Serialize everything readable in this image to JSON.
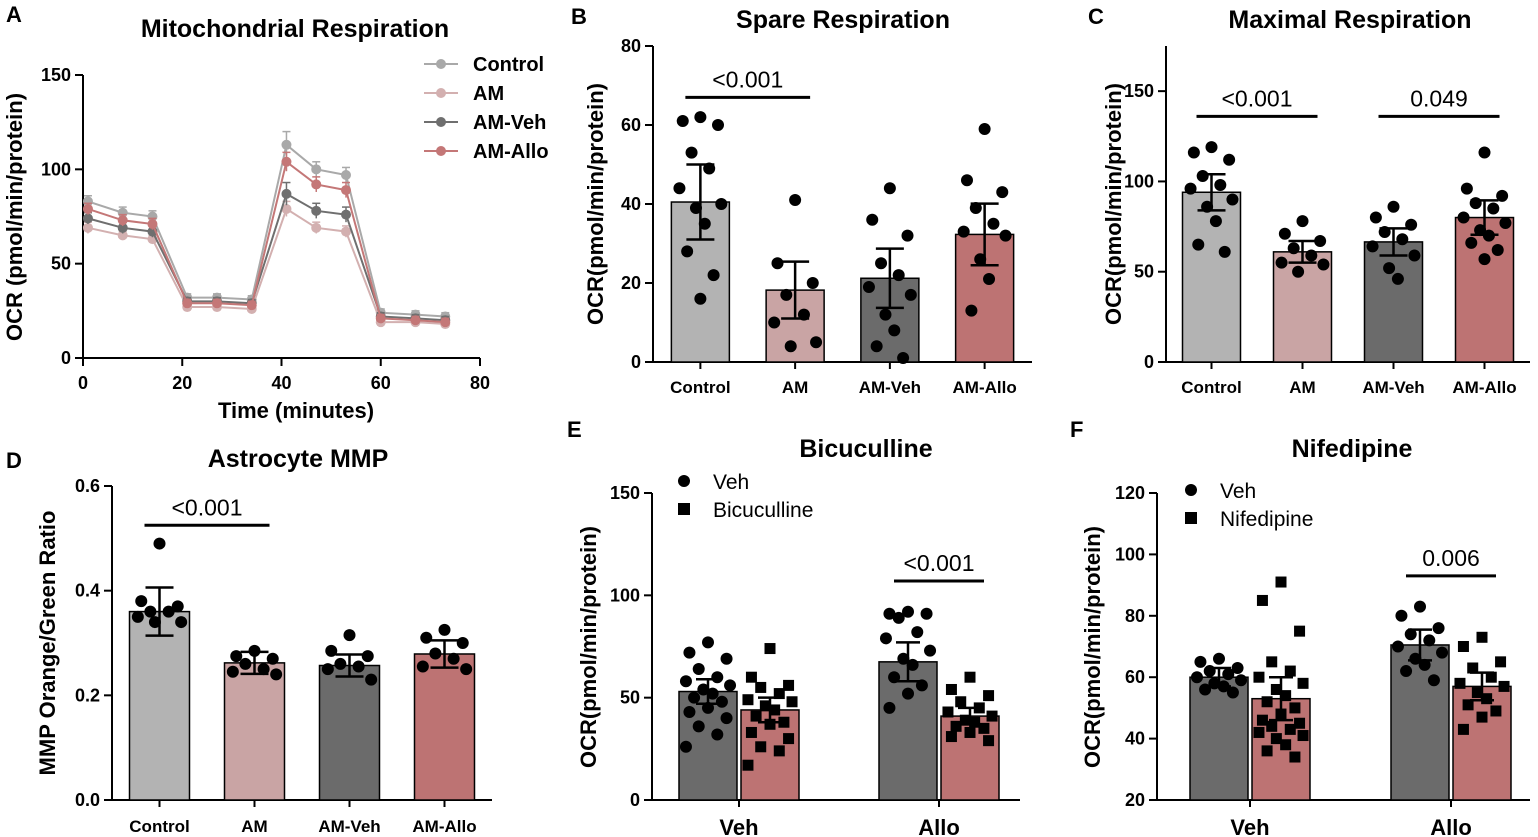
{
  "chart_data": [
    {
      "panel": "A",
      "type": "line",
      "title": "Mitochondrial Respiration",
      "xlabel": "Time (minutes)",
      "ylabel": "OCR (pmol/min/protein)",
      "xlim": [
        0,
        80
      ],
      "ylim": [
        0,
        150
      ],
      "xticks": [
        0,
        20,
        40,
        60,
        80
      ],
      "yticks": [
        0,
        50,
        100,
        150
      ],
      "x": [
        1,
        8,
        14,
        21,
        27,
        34,
        41,
        47,
        53,
        60,
        67,
        73
      ],
      "series": [
        {
          "name": "Control",
          "color": "#a9a9a9",
          "values": [
            83,
            77,
            75,
            32,
            32,
            31,
            113,
            100,
            97,
            24,
            23,
            22
          ],
          "errors": [
            3,
            3,
            3,
            2,
            2,
            2,
            7,
            4,
            4,
            2,
            2,
            2
          ]
        },
        {
          "name": "AM",
          "color": "#d3b0b0",
          "values": [
            69,
            65,
            63,
            27,
            27,
            26,
            79,
            69,
            67,
            19,
            19,
            18
          ],
          "errors": [
            3,
            2,
            2,
            2,
            2,
            2,
            4,
            3,
            3,
            2,
            2,
            2
          ]
        },
        {
          "name": "AM-Veh",
          "color": "#6f6f6f",
          "values": [
            74,
            69,
            67,
            30,
            30,
            29,
            87,
            78,
            76,
            22,
            21,
            20
          ],
          "errors": [
            3,
            3,
            3,
            2,
            2,
            2,
            6,
            4,
            4,
            2,
            2,
            2
          ]
        },
        {
          "name": "AM-Allo",
          "color": "#c47777",
          "values": [
            79,
            73,
            71,
            29,
            29,
            28,
            104,
            92,
            89,
            21,
            20,
            19
          ],
          "errors": [
            3,
            3,
            3,
            2,
            2,
            2,
            5,
            4,
            4,
            2,
            2,
            2
          ]
        }
      ]
    },
    {
      "panel": "B",
      "type": "bar",
      "title": "Spare Respiration",
      "ylabel": "OCR(pmol/min/protein)",
      "ylim": [
        0,
        80
      ],
      "yticks": [
        0,
        20,
        40,
        60,
        80
      ],
      "categories": [
        "Control",
        "AM",
        "AM-Veh",
        "AM-Allo"
      ],
      "values": [
        40.5,
        18.2,
        21.2,
        32.3
      ],
      "errors": [
        9.5,
        7.2,
        7.5,
        7.8
      ],
      "colors": [
        "#b3b3b3",
        "#c9a4a4",
        "#6b6b6b",
        "#bd7373"
      ],
      "points": [
        [
          62,
          61,
          60,
          53,
          49,
          44,
          40,
          39,
          35,
          28,
          22,
          16
        ],
        [
          41,
          25,
          20,
          17,
          12,
          10,
          5,
          4
        ],
        [
          44,
          36,
          32,
          25,
          22,
          19,
          17,
          12,
          8,
          4,
          1
        ],
        [
          59,
          46,
          43,
          39,
          35,
          33,
          32,
          26,
          21,
          13
        ]
      ],
      "brackets": [
        {
          "from": 0,
          "to": 1,
          "label": "<0.001",
          "y": 67
        }
      ]
    },
    {
      "panel": "C",
      "type": "bar",
      "title": "Maximal Respiration",
      "ylabel": "OCR(pmol/min/protein)",
      "ylim": [
        0,
        175
      ],
      "yticks": [
        0,
        50,
        100,
        150
      ],
      "categories": [
        "Control",
        "AM",
        "AM-Veh",
        "AM-Allo"
      ],
      "values": [
        94,
        61,
        66.5,
        80
      ],
      "errors": [
        10,
        6,
        7.5,
        9.5
      ],
      "colors": [
        "#b3b3b3",
        "#c9a4a4",
        "#6b6b6b",
        "#bd7373"
      ],
      "points": [
        [
          119,
          116,
          112,
          103,
          98,
          96,
          90,
          86,
          78,
          65,
          61
        ],
        [
          78,
          71,
          67,
          63,
          59,
          55,
          54,
          50
        ],
        [
          86,
          80,
          76,
          72,
          68,
          64,
          59,
          52,
          46
        ],
        [
          116,
          96,
          92,
          88,
          85,
          80,
          77,
          73,
          70,
          66,
          62,
          57
        ]
      ],
      "brackets": [
        {
          "from": 0,
          "to": 1,
          "label": "<0.001",
          "y": 136
        },
        {
          "from": 2,
          "to": 3,
          "label": "0.049",
          "y": 136
        }
      ]
    },
    {
      "panel": "D",
      "type": "bar",
      "title": "Astrocyte MMP",
      "ylabel": "MMP Orange/Green Ratio",
      "ylim": [
        0,
        0.6
      ],
      "yticks": [
        "0.0",
        "0.2",
        "0.4",
        "0.6"
      ],
      "categories": [
        "Control",
        "AM",
        "AM-Veh",
        "AM-Allo"
      ],
      "values": [
        0.36,
        0.262,
        0.257,
        0.279
      ],
      "errors": [
        0.046,
        0.021,
        0.021,
        0.026
      ],
      "colors": [
        "#b3b3b3",
        "#c9a4a4",
        "#6b6b6b",
        "#bd7373"
      ],
      "points": [
        [
          0.49,
          0.38,
          0.37,
          0.36,
          0.36,
          0.35,
          0.34,
          0.34
        ],
        [
          0.285,
          0.275,
          0.27,
          0.26,
          0.25,
          0.245,
          0.24
        ],
        [
          0.315,
          0.285,
          0.275,
          0.26,
          0.255,
          0.25,
          0.23
        ],
        [
          0.325,
          0.31,
          0.3,
          0.28,
          0.27,
          0.255,
          0.25
        ]
      ],
      "brackets": [
        {
          "from": 0,
          "to": 1,
          "label": "<0.001",
          "y": 0.525
        }
      ]
    },
    {
      "panel": "E",
      "type": "bar",
      "title": "Bicuculline",
      "ylabel": "OCR(pmol/min/protein)",
      "ylim": [
        0,
        150
      ],
      "yticks": [
        0,
        50,
        100,
        150
      ],
      "categories": [
        "Veh",
        "Allo"
      ],
      "legend": [
        "Veh",
        "Bicuculline"
      ],
      "series": [
        {
          "name": "Veh",
          "color": "#6b6b6b",
          "marker": "circle",
          "values": [
            53,
            67.5
          ],
          "errors": [
            6,
            9.5
          ],
          "points": [
            [
              77,
              72,
              69,
              64,
              60,
              58,
              56,
              54,
              52,
              50,
              48,
              45,
              43,
              40,
              36,
              32,
              26
            ],
            [
              92,
              91,
              91,
              89,
              82,
              79,
              73,
              69,
              66,
              60,
              56,
              52,
              45
            ]
          ]
        },
        {
          "name": "Bicuculline",
          "color": "#bd7373",
          "marker": "square",
          "values": [
            44,
            41
          ],
          "errors": [
            6,
            4
          ],
          "points": [
            [
              74,
              60,
              56,
              55,
              52,
              49,
              48,
              46,
              44,
              41,
              38,
              37,
              33,
              30,
              26,
              24,
              17
            ],
            [
              60,
              54,
              51,
              48,
              45,
              43,
              41,
              39,
              38,
              36,
              35,
              33,
              31,
              29
            ]
          ]
        }
      ],
      "brackets": [
        {
          "from": 3,
          "to": 4,
          "label": "<0.001",
          "y": 107
        }
      ]
    },
    {
      "panel": "F",
      "type": "bar",
      "title": "Nifedipine",
      "ylabel": "OCR(pmol/min/protein)",
      "ylim": [
        20,
        120
      ],
      "yticks": [
        20,
        40,
        60,
        80,
        100,
        120
      ],
      "categories": [
        "Veh",
        "Allo"
      ],
      "legend": [
        "Veh",
        "Nifedipine"
      ],
      "series": [
        {
          "name": "Veh",
          "color": "#6b6b6b",
          "marker": "circle",
          "values": [
            60,
            70.5
          ],
          "errors": [
            3,
            5
          ],
          "points": [
            [
              66,
              65,
              63,
              62,
              61,
              60,
              59,
              58,
              57,
              56,
              55
            ],
            [
              83,
              80,
              76,
              74,
              72,
              70,
              68,
              66,
              64,
              62,
              59
            ]
          ]
        },
        {
          "name": "Nifedipine",
          "color": "#bd7373",
          "marker": "square",
          "values": [
            53,
            57
          ],
          "errors": [
            7,
            4.5
          ],
          "points": [
            [
              91,
              85,
              75,
              65,
              62,
              60,
              58,
              56,
              54,
              52,
              50,
              48,
              46,
              45,
              44,
              43,
              42,
              41,
              40,
              38,
              36,
              34
            ],
            [
              73,
              70,
              65,
              63,
              60,
              58,
              57,
              55,
              53,
              51,
              49,
              47,
              43
            ]
          ]
        }
      ],
      "brackets": [
        {
          "from": 3,
          "to": 4,
          "label": "0.006",
          "y": 93
        }
      ]
    }
  ]
}
